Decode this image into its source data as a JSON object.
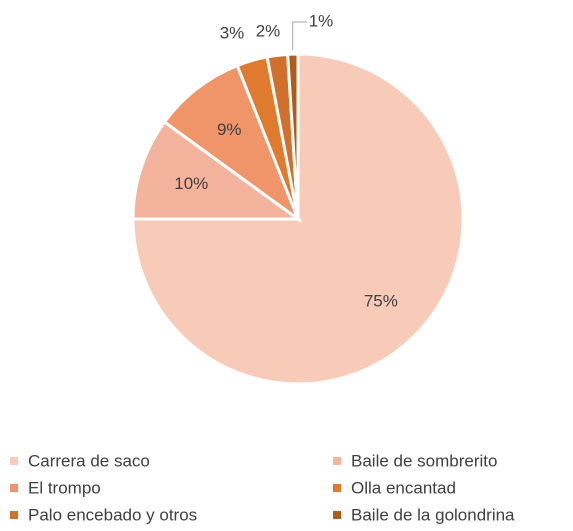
{
  "chart_data": {
    "type": "pie",
    "categories": [
      "Carrera de saco",
      "Baile de sombrerito",
      "El trompo",
      "Olla encantad",
      "Palo encebado y otros",
      "Baile de la golondrina"
    ],
    "values": [
      75,
      10,
      9,
      3,
      2,
      1
    ],
    "value_labels": [
      "75%",
      "10%",
      "9%",
      "3%",
      "2%",
      "1%"
    ],
    "colors": [
      "#f8cbb9",
      "#f4b39c",
      "#f0956a",
      "#e07a2e",
      "#d0702c",
      "#b05a1c"
    ],
    "legend": "bottom"
  }
}
